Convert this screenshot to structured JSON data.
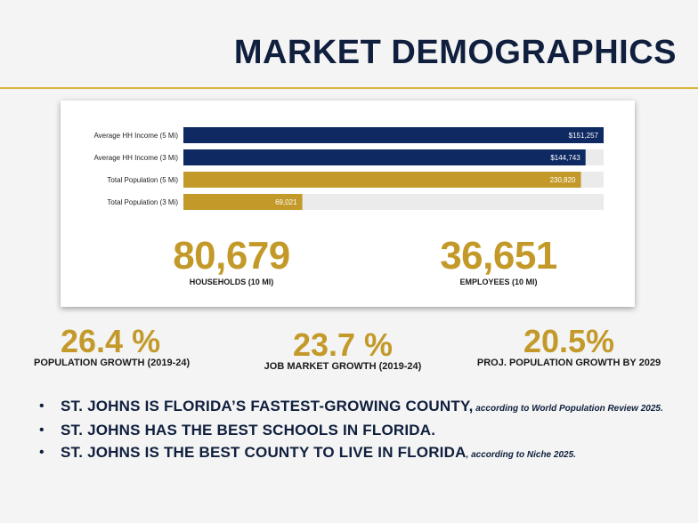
{
  "title": "MARKET DEMOGRAPHICS",
  "chart_data": {
    "type": "bar",
    "orientation": "horizontal",
    "categories": [
      "Average HH Income (5 Mi)",
      "Average HH Income (3 Mi)",
      "Total Population (5 Mi)",
      "Total Population (3 Mi)"
    ],
    "values": [
      151257,
      144743,
      230820,
      69021
    ],
    "value_labels": [
      "$151,257",
      "$144,743",
      "230,820",
      "69,021"
    ],
    "fill_fractions": [
      1.0,
      0.957,
      0.946,
      0.283
    ],
    "colors": [
      "#0f2a63",
      "#0f2a63",
      "#c39a2a",
      "#c39a2a"
    ],
    "grid": false
  },
  "stats": [
    {
      "value": "80,679",
      "caption": "HOUSEHOLDS (10 MI)"
    },
    {
      "value": "36,651",
      "caption": "EMPLOYEES (10 MI)"
    }
  ],
  "growth": [
    {
      "value": "26.4 %",
      "caption": "POPULATION GROWTH (2019-24)"
    },
    {
      "value": "23.7 %",
      "caption": "JOB MARKET GROWTH (2019-24)"
    },
    {
      "value": "20.5%",
      "caption": "PROJ. POPULATION GROWTH BY 2029"
    }
  ],
  "bullets": [
    {
      "main": "ST. JOHNS IS FLORIDA’S FASTEST-GROWING COUNTY,",
      "note": " according to World Population Review 2025."
    },
    {
      "main": "ST. JOHNS HAS THE BEST SCHOOLS IN FLORIDA.",
      "note": ""
    },
    {
      "main": "ST. JOHNS IS THE BEST COUNTY TO LIVE IN FLORIDA",
      "note": ", according to Niche 2025."
    }
  ],
  "colors": {
    "navy": "#0f1f3d",
    "gold": "#c39a2a"
  },
  "icons": {
    "bullet": "bullet-dot"
  }
}
